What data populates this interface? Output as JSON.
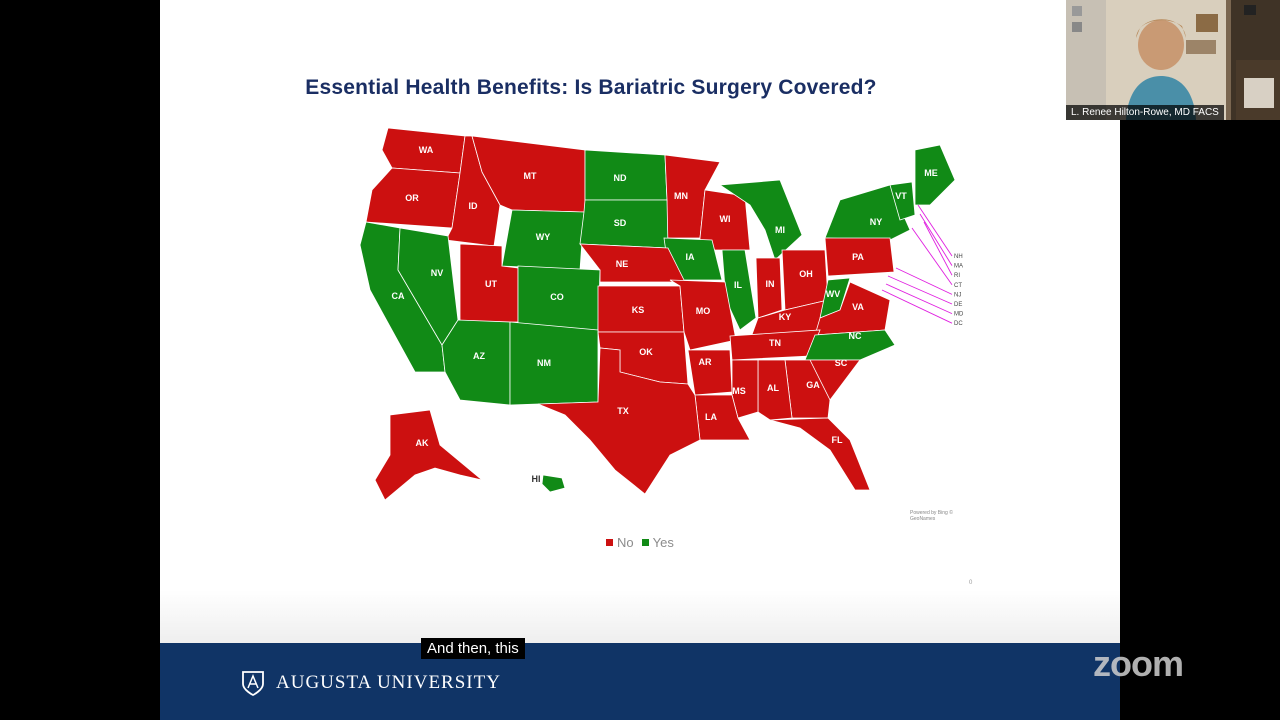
{
  "slide": {
    "title": "Essential Health Benefits: Is Bariatric Surgery Covered?",
    "legend": [
      {
        "label": "No",
        "color": "#cc1010"
      },
      {
        "label": "Yes",
        "color": "#118a16"
      }
    ],
    "attribution": "Powered by Bing © GeoNames",
    "page_marker": "0"
  },
  "colors": {
    "no": "#cc1010",
    "yes": "#118a16",
    "callout": "#e020e0"
  },
  "map": {
    "states": {
      "WA": "No",
      "OR": "No",
      "ID": "No",
      "MT": "No",
      "ND": "Yes",
      "MN": "No",
      "WI": "No",
      "MI": "Yes",
      "NY": "Yes",
      "VT": "Yes",
      "ME": "Yes",
      "CA": "Yes",
      "NV": "Yes",
      "UT": "No",
      "WY": "Yes",
      "SD": "Yes",
      "IA": "Yes",
      "IL": "Yes",
      "IN": "No",
      "OH": "No",
      "PA": "No",
      "NE": "No",
      "CO": "Yes",
      "KS": "No",
      "MO": "No",
      "KY": "No",
      "WV": "Yes",
      "VA": "No",
      "AZ": "Yes",
      "NM": "Yes",
      "OK": "No",
      "AR": "No",
      "TN": "No",
      "NC": "Yes",
      "SC": "No",
      "GA": "No",
      "AL": "No",
      "MS": "No",
      "LA": "No",
      "TX": "No",
      "FL": "No",
      "AK": "No",
      "HI": "Yes"
    },
    "callouts": [
      "NH",
      "MA",
      "RI",
      "CT",
      "NJ",
      "DE",
      "MD",
      "DC"
    ]
  },
  "footer": {
    "university": "AUGUSTA UNIVERSITY"
  },
  "caption": "And then, this",
  "zoom": {
    "logo": "zoom",
    "participant_name": "L. Renee Hilton-Rowe, MD FACS"
  }
}
